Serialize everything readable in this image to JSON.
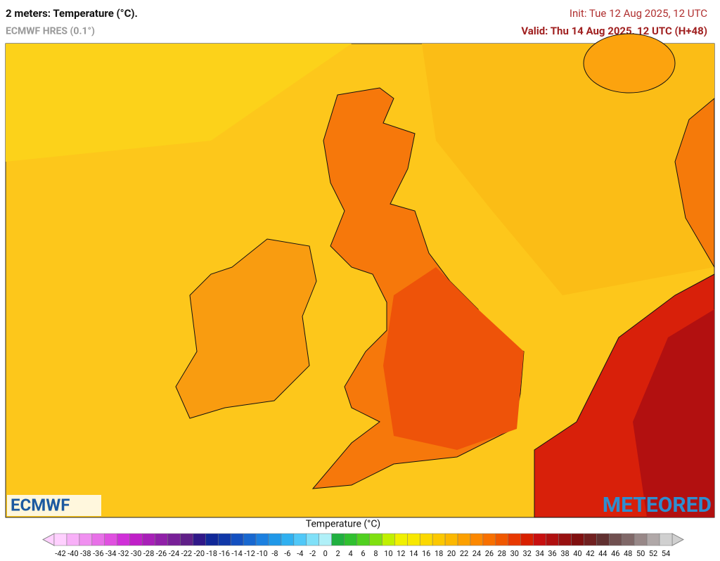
{
  "header": {
    "title": "2 meters: Temperature (°C).",
    "model": "ECMWF HRES (0.1°)",
    "init": "Init: Tue 12 Aug 2025, 12 UTC",
    "valid": "Valid: Thu 14 Aug 2025, 12 UTC (H+48)"
  },
  "logos": {
    "left": "ECMWF",
    "right": "METEORED"
  },
  "legend": {
    "title": "Temperature (°C)",
    "ticks": [
      -42,
      -40,
      -38,
      -36,
      -34,
      -32,
      -30,
      -28,
      -26,
      -24,
      -22,
      -20,
      -18,
      -16,
      -14,
      -12,
      -10,
      -8,
      -6,
      -4,
      -2,
      0,
      2,
      4,
      6,
      8,
      10,
      12,
      14,
      16,
      18,
      20,
      22,
      24,
      26,
      28,
      30,
      32,
      34,
      36,
      38,
      40,
      42,
      44,
      46,
      48,
      50,
      52,
      54
    ],
    "colors": [
      "#ffd0ff",
      "#f8b0f8",
      "#f090f0",
      "#e870e8",
      "#e050e0",
      "#d030d8",
      "#c020c8",
      "#a820b8",
      "#9020a8",
      "#782098",
      "#602088",
      "#301888",
      "#102898",
      "#1038a8",
      "#1450c0",
      "#1868d0",
      "#1c80e0",
      "#2098e8",
      "#30b0f0",
      "#50c8f8",
      "#80e0f8",
      "#b0f0f8",
      "#20b040",
      "#30c030",
      "#50d020",
      "#80e010",
      "#c0f000",
      "#f0f000",
      "#f8e800",
      "#fcd800",
      "#fcc800",
      "#fcb800",
      "#fca000",
      "#fc8800",
      "#f87000",
      "#f05800",
      "#e83800",
      "#d82000",
      "#c81010",
      "#b01010",
      "#981010",
      "#801010",
      "#702020",
      "#603030",
      "#705050",
      "#806868",
      "#988888",
      "#b0a8a8",
      "#d0d0d0"
    ]
  }
}
